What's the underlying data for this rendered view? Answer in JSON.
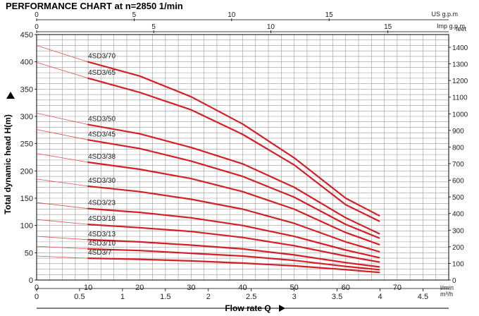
{
  "title": "PERFORMANCE CHART at n=2850 1/min",
  "chart_data": {
    "type": "line",
    "title": "PERFORMANCE CHART at n=2850 1/min",
    "x_primary": {
      "label": "Flow rate Q",
      "unit": "l/min",
      "ticks": [
        0,
        10,
        20,
        30,
        40,
        50,
        60,
        70
      ],
      "range": [
        0,
        80
      ]
    },
    "x_m3h": {
      "unit": "m³/h",
      "ticks": [
        "0",
        "0.5",
        "1",
        "1.5",
        "2",
        "2.5",
        "3",
        "3.5",
        "4",
        "4.5"
      ]
    },
    "x_usgpm": {
      "unit": "US g.p.m",
      "ticks": [
        "0",
        "5",
        "10",
        "15"
      ]
    },
    "x_impgpm": {
      "unit": "Imp g.p.m",
      "ticks": [
        "0",
        "5",
        "10",
        "15"
      ]
    },
    "y_left": {
      "label": "Total dynamic head H(m)",
      "ticks": [
        0,
        50,
        100,
        150,
        200,
        250,
        300,
        350,
        400,
        450
      ],
      "range": [
        0,
        450
      ]
    },
    "y_right": {
      "unit": "feet",
      "ticks": [
        "0",
        "100",
        "200",
        "300",
        "400",
        "500",
        "600",
        "700",
        "800",
        "900",
        "1000",
        "1100",
        "1200",
        "1300",
        "1400"
      ]
    },
    "grid": true,
    "series": [
      {
        "name": "4SD3/70",
        "x": [
          0,
          10,
          20,
          30,
          40,
          50,
          60,
          66.5
        ],
        "y": [
          430,
          400,
          374,
          336,
          286,
          224,
          150,
          118
        ]
      },
      {
        "name": "4SD3/65",
        "x": [
          0,
          10,
          20,
          30,
          40,
          50,
          60,
          66.5
        ],
        "y": [
          399,
          370,
          344,
          312,
          267,
          211,
          138,
          108
        ]
      },
      {
        "name": "4SD3/50",
        "x": [
          0,
          10,
          20,
          30,
          40,
          50,
          60,
          66.5
        ],
        "y": [
          306,
          285,
          268,
          243,
          213,
          170,
          114,
          85
        ]
      },
      {
        "name": "4SD3/45",
        "x": [
          0,
          10,
          20,
          30,
          40,
          50,
          60,
          66.5
        ],
        "y": [
          276,
          257,
          241,
          218,
          190,
          152,
          102,
          77
        ]
      },
      {
        "name": "4SD3/38",
        "x": [
          0,
          10,
          20,
          30,
          40,
          50,
          60,
          66.5
        ],
        "y": [
          232,
          216,
          203,
          186,
          162,
          130,
          87,
          65
        ]
      },
      {
        "name": "4SD3/30",
        "x": [
          0,
          10,
          20,
          30,
          40,
          50,
          60,
          66.5
        ],
        "y": [
          185,
          172,
          162,
          148,
          130,
          104,
          70,
          52
        ]
      },
      {
        "name": "4SD3/23",
        "x": [
          0,
          10,
          20,
          30,
          40,
          50,
          60,
          66.5
        ],
        "y": [
          142,
          131,
          124,
          114,
          100,
          80,
          55,
          41
        ]
      },
      {
        "name": "4SD3/18",
        "x": [
          0,
          10,
          20,
          30,
          40,
          50,
          60,
          66.5
        ],
        "y": [
          111,
          102,
          96,
          89,
          78,
          63,
          44,
          33
        ]
      },
      {
        "name": "4SD3/13",
        "x": [
          0,
          10,
          20,
          30,
          40,
          50,
          60,
          66.5
        ],
        "y": [
          80,
          74,
          70,
          64,
          57,
          46,
          32,
          24
        ]
      },
      {
        "name": "4SD3/10",
        "x": [
          0,
          10,
          20,
          30,
          40,
          50,
          60,
          66.5
        ],
        "y": [
          62,
          57,
          54,
          49,
          44,
          36,
          25,
          19
        ]
      },
      {
        "name": "4SD3/7",
        "x": [
          0,
          10,
          20,
          30,
          40,
          50,
          60,
          66.5
        ],
        "y": [
          44,
          40,
          38,
          35,
          31,
          26,
          19,
          14
        ]
      }
    ],
    "colors": {
      "curve": "#d41f26",
      "curve_ext": "#e2504f",
      "grid": "#9a9a9a",
      "frame": "#000000"
    }
  }
}
